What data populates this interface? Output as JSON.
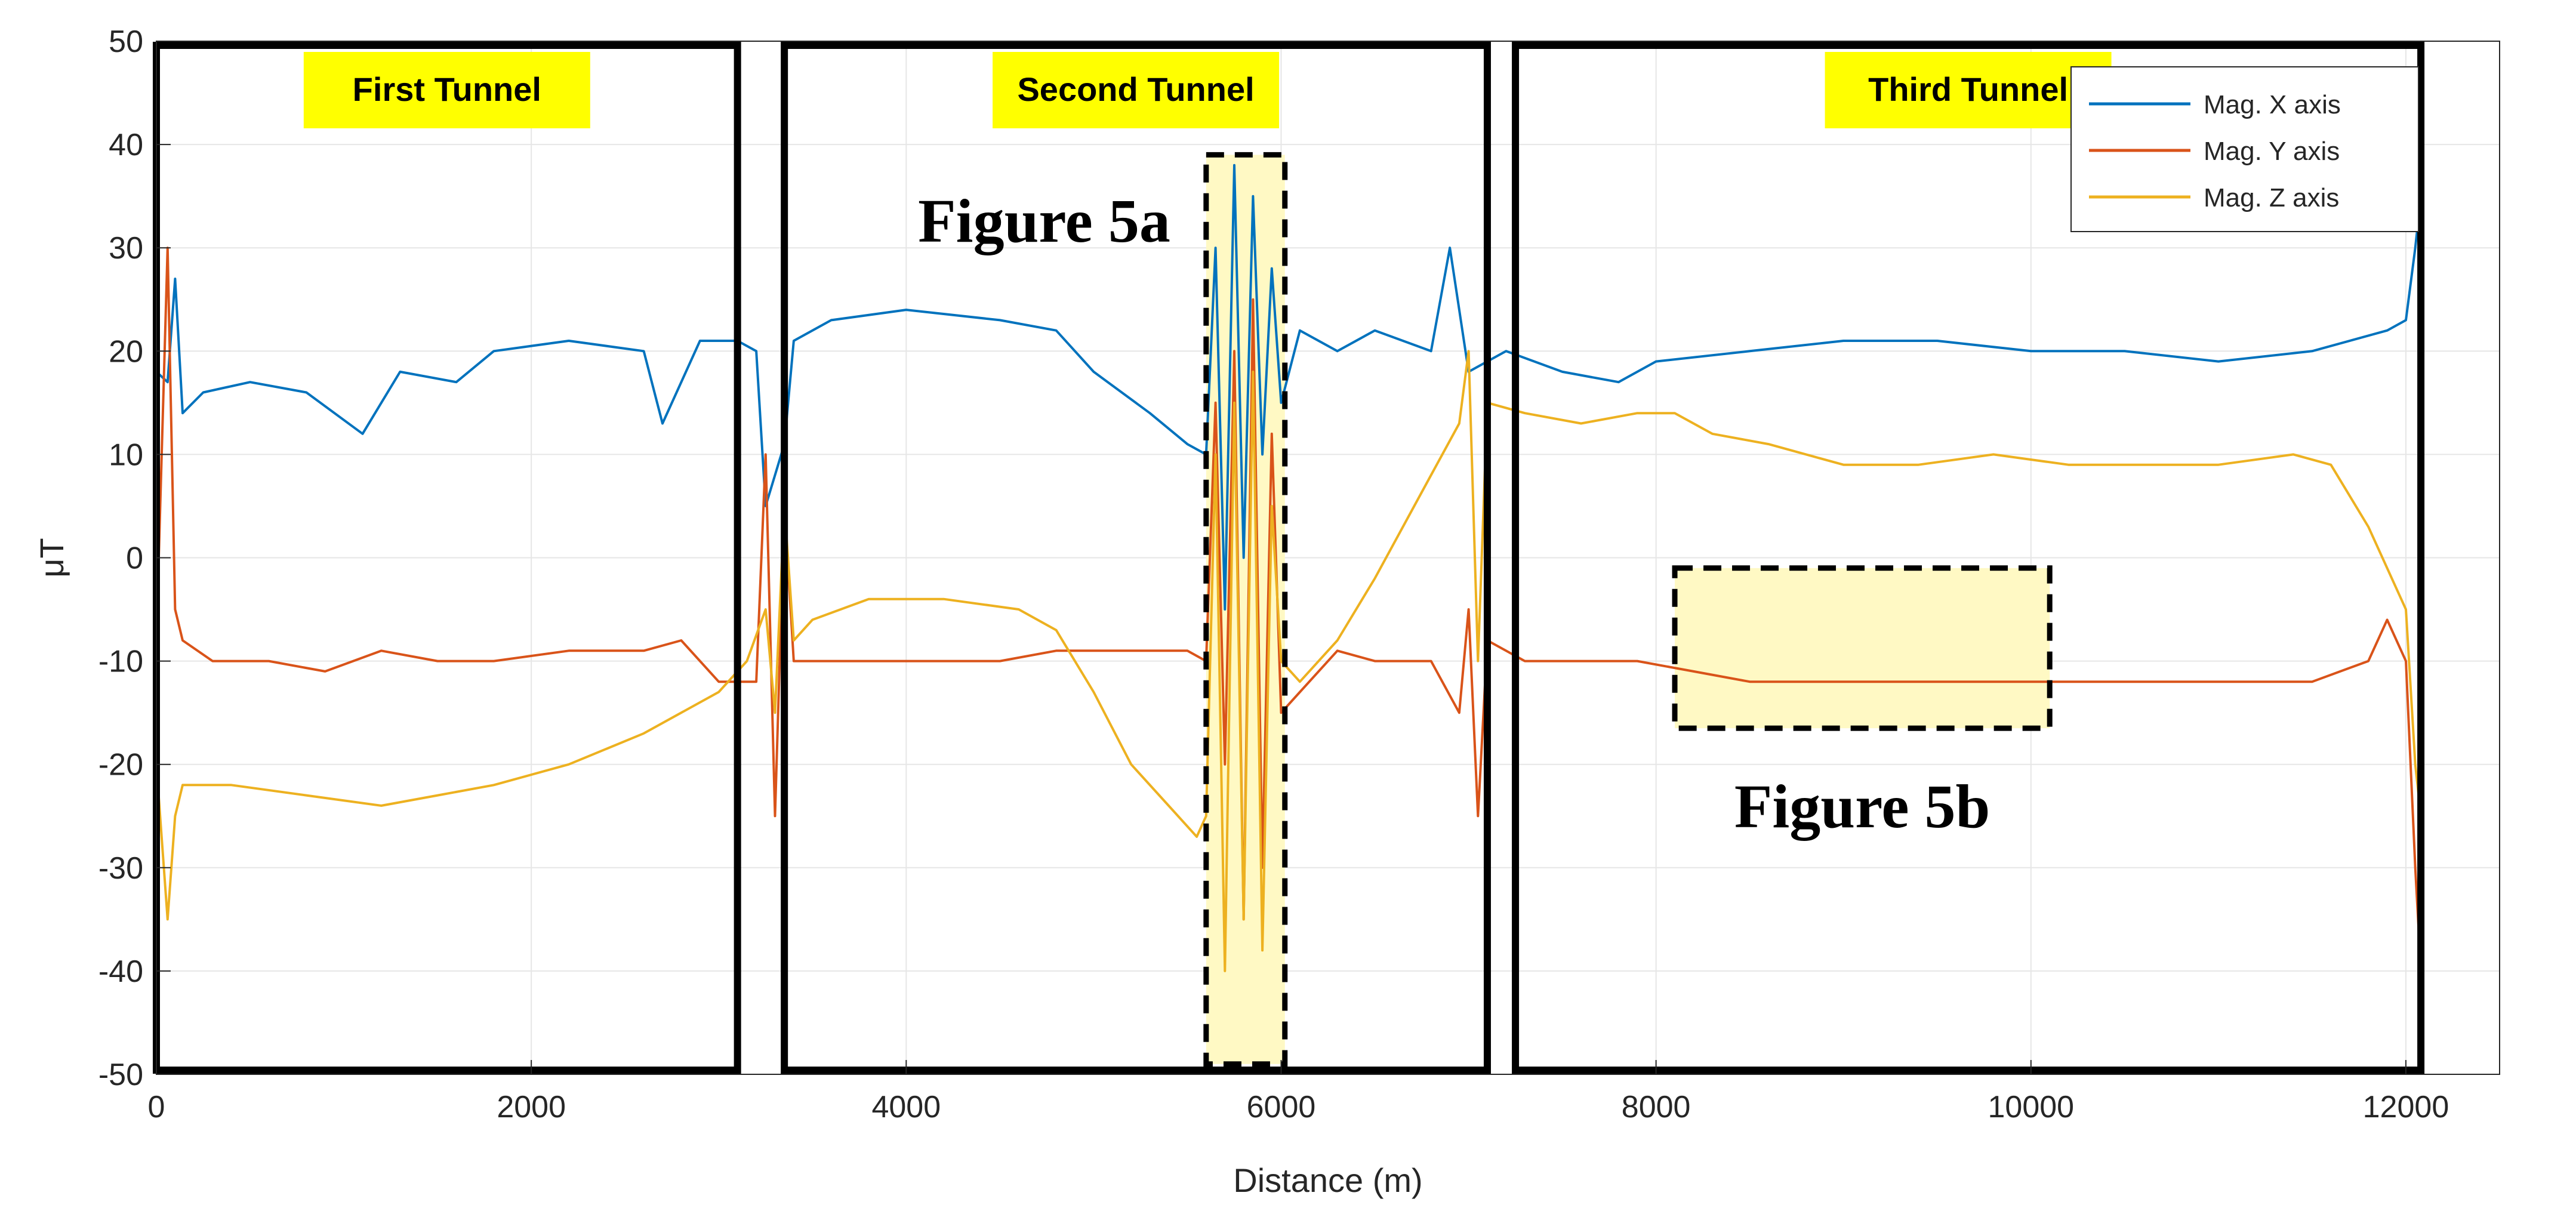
{
  "chart_data": {
    "type": "line",
    "title": "",
    "xlabel": "Distance (m)",
    "ylabel": "μT",
    "xlim": [
      0,
      12500
    ],
    "ylim": [
      -50,
      50
    ],
    "xticks": [
      0,
      2000,
      4000,
      6000,
      8000,
      10000,
      12000
    ],
    "xtick_labels": [
      "0",
      "2000",
      "4000",
      "6000",
      "8000",
      "10000",
      "12000"
    ],
    "yticks": [
      -50,
      -40,
      -30,
      -20,
      -10,
      0,
      10,
      20,
      30,
      40,
      50
    ],
    "ytick_labels": [
      "-50",
      "-40",
      "-30",
      "-20",
      "-10",
      "0",
      "10",
      "20",
      "30",
      "40",
      "50"
    ],
    "grid": true,
    "legend_position": "top-right",
    "series": [
      {
        "name": "Mag. X axis",
        "color": "#0072BD",
        "points": [
          [
            0,
            18
          ],
          [
            60,
            17
          ],
          [
            100,
            27
          ],
          [
            140,
            14
          ],
          [
            250,
            16
          ],
          [
            500,
            17
          ],
          [
            800,
            16
          ],
          [
            1100,
            12
          ],
          [
            1300,
            18
          ],
          [
            1600,
            17
          ],
          [
            1800,
            20
          ],
          [
            2200,
            21
          ],
          [
            2600,
            20
          ],
          [
            2700,
            13
          ],
          [
            2900,
            21
          ],
          [
            3100,
            21
          ],
          [
            3200,
            20
          ],
          [
            3250,
            5
          ],
          [
            3350,
            11
          ],
          [
            3400,
            21
          ],
          [
            3600,
            23
          ],
          [
            4000,
            24
          ],
          [
            4500,
            23
          ],
          [
            4800,
            22
          ],
          [
            5000,
            18
          ],
          [
            5300,
            14
          ],
          [
            5500,
            11
          ],
          [
            5600,
            10
          ],
          [
            5650,
            30
          ],
          [
            5700,
            -5
          ],
          [
            5750,
            38
          ],
          [
            5800,
            0
          ],
          [
            5850,
            35
          ],
          [
            5900,
            10
          ],
          [
            5950,
            28
          ],
          [
            6000,
            15
          ],
          [
            6100,
            22
          ],
          [
            6300,
            20
          ],
          [
            6500,
            22
          ],
          [
            6800,
            20
          ],
          [
            6900,
            30
          ],
          [
            7000,
            18
          ],
          [
            7200,
            20
          ],
          [
            7500,
            18
          ],
          [
            7800,
            17
          ],
          [
            8000,
            19
          ],
          [
            8500,
            20
          ],
          [
            9000,
            21
          ],
          [
            9500,
            21
          ],
          [
            10000,
            20
          ],
          [
            10500,
            20
          ],
          [
            11000,
            19
          ],
          [
            11500,
            20
          ],
          [
            11900,
            22
          ],
          [
            12000,
            23
          ],
          [
            12050,
            30
          ],
          [
            12080,
            35
          ]
        ]
      },
      {
        "name": "Mag. Y axis",
        "color": "#D95319",
        "points": [
          [
            0,
            -8
          ],
          [
            60,
            30
          ],
          [
            100,
            -5
          ],
          [
            140,
            -8
          ],
          [
            300,
            -10
          ],
          [
            600,
            -10
          ],
          [
            900,
            -11
          ],
          [
            1200,
            -9
          ],
          [
            1500,
            -10
          ],
          [
            1800,
            -10
          ],
          [
            2200,
            -9
          ],
          [
            2600,
            -9
          ],
          [
            2800,
            -8
          ],
          [
            3000,
            -12
          ],
          [
            3100,
            -12
          ],
          [
            3200,
            -12
          ],
          [
            3250,
            10
          ],
          [
            3300,
            -25
          ],
          [
            3350,
            5
          ],
          [
            3400,
            -10
          ],
          [
            3600,
            -10
          ],
          [
            4000,
            -10
          ],
          [
            4500,
            -10
          ],
          [
            4800,
            -9
          ],
          [
            5000,
            -9
          ],
          [
            5300,
            -9
          ],
          [
            5500,
            -9
          ],
          [
            5600,
            -10
          ],
          [
            5650,
            15
          ],
          [
            5700,
            -20
          ],
          [
            5750,
            20
          ],
          [
            5800,
            -35
          ],
          [
            5850,
            25
          ],
          [
            5900,
            -30
          ],
          [
            5950,
            12
          ],
          [
            6000,
            -15
          ],
          [
            6100,
            -13
          ],
          [
            6300,
            -9
          ],
          [
            6500,
            -10
          ],
          [
            6800,
            -10
          ],
          [
            6950,
            -15
          ],
          [
            7000,
            -5
          ],
          [
            7050,
            -25
          ],
          [
            7100,
            -8
          ],
          [
            7300,
            -10
          ],
          [
            7600,
            -10
          ],
          [
            7900,
            -10
          ],
          [
            8200,
            -11
          ],
          [
            8500,
            -12
          ],
          [
            9000,
            -12
          ],
          [
            9500,
            -12
          ],
          [
            10000,
            -12
          ],
          [
            10500,
            -12
          ],
          [
            11000,
            -12
          ],
          [
            11500,
            -12
          ],
          [
            11800,
            -10
          ],
          [
            11900,
            -6
          ],
          [
            12000,
            -10
          ],
          [
            12050,
            -30
          ],
          [
            12080,
            -40
          ]
        ]
      },
      {
        "name": "Mag. Z axis",
        "color": "#EDB120",
        "points": [
          [
            0,
            -20
          ],
          [
            60,
            -35
          ],
          [
            100,
            -25
          ],
          [
            140,
            -22
          ],
          [
            400,
            -22
          ],
          [
            800,
            -23
          ],
          [
            1200,
            -24
          ],
          [
            1500,
            -23
          ],
          [
            1800,
            -22
          ],
          [
            2200,
            -20
          ],
          [
            2600,
            -17
          ],
          [
            3000,
            -13
          ],
          [
            3150,
            -10
          ],
          [
            3250,
            -5
          ],
          [
            3300,
            -15
          ],
          [
            3350,
            5
          ],
          [
            3400,
            -8
          ],
          [
            3500,
            -6
          ],
          [
            3800,
            -4
          ],
          [
            4200,
            -4
          ],
          [
            4600,
            -5
          ],
          [
            4800,
            -7
          ],
          [
            5000,
            -13
          ],
          [
            5200,
            -20
          ],
          [
            5400,
            -24
          ],
          [
            5550,
            -27
          ],
          [
            5600,
            -25
          ],
          [
            5650,
            10
          ],
          [
            5700,
            -40
          ],
          [
            5750,
            15
          ],
          [
            5800,
            -35
          ],
          [
            5850,
            18
          ],
          [
            5900,
            -38
          ],
          [
            5950,
            5
          ],
          [
            6000,
            -10
          ],
          [
            6100,
            -12
          ],
          [
            6300,
            -8
          ],
          [
            6500,
            -2
          ],
          [
            6800,
            8
          ],
          [
            6950,
            13
          ],
          [
            7000,
            20
          ],
          [
            7050,
            -10
          ],
          [
            7100,
            15
          ],
          [
            7300,
            14
          ],
          [
            7600,
            13
          ],
          [
            7900,
            14
          ],
          [
            8100,
            14
          ],
          [
            8300,
            12
          ],
          [
            8600,
            11
          ],
          [
            9000,
            9
          ],
          [
            9400,
            9
          ],
          [
            9800,
            10
          ],
          [
            10200,
            9
          ],
          [
            10600,
            9
          ],
          [
            11000,
            9
          ],
          [
            11400,
            10
          ],
          [
            11600,
            9
          ],
          [
            11800,
            3
          ],
          [
            11950,
            -3
          ],
          [
            12000,
            -5
          ],
          [
            12050,
            -20
          ],
          [
            12080,
            -25
          ]
        ]
      }
    ],
    "annotations": {
      "tunnels": [
        {
          "label": "First Tunnel",
          "x_start": 0,
          "x_end": 3100
        },
        {
          "label": "Second Tunnel",
          "x_start": 3350,
          "x_end": 7100
        },
        {
          "label": "Third Tunnel",
          "x_start": 7250,
          "x_end": 12080
        }
      ],
      "highlights": [
        {
          "label": "Figure 5a",
          "x_start": 5600,
          "x_end": 6020,
          "y_top": 39,
          "y_bottom": -49
        },
        {
          "label": "Figure 5b",
          "x_start": 8100,
          "x_end": 10100,
          "y_top": -1,
          "y_bottom": -16.5
        }
      ]
    }
  }
}
